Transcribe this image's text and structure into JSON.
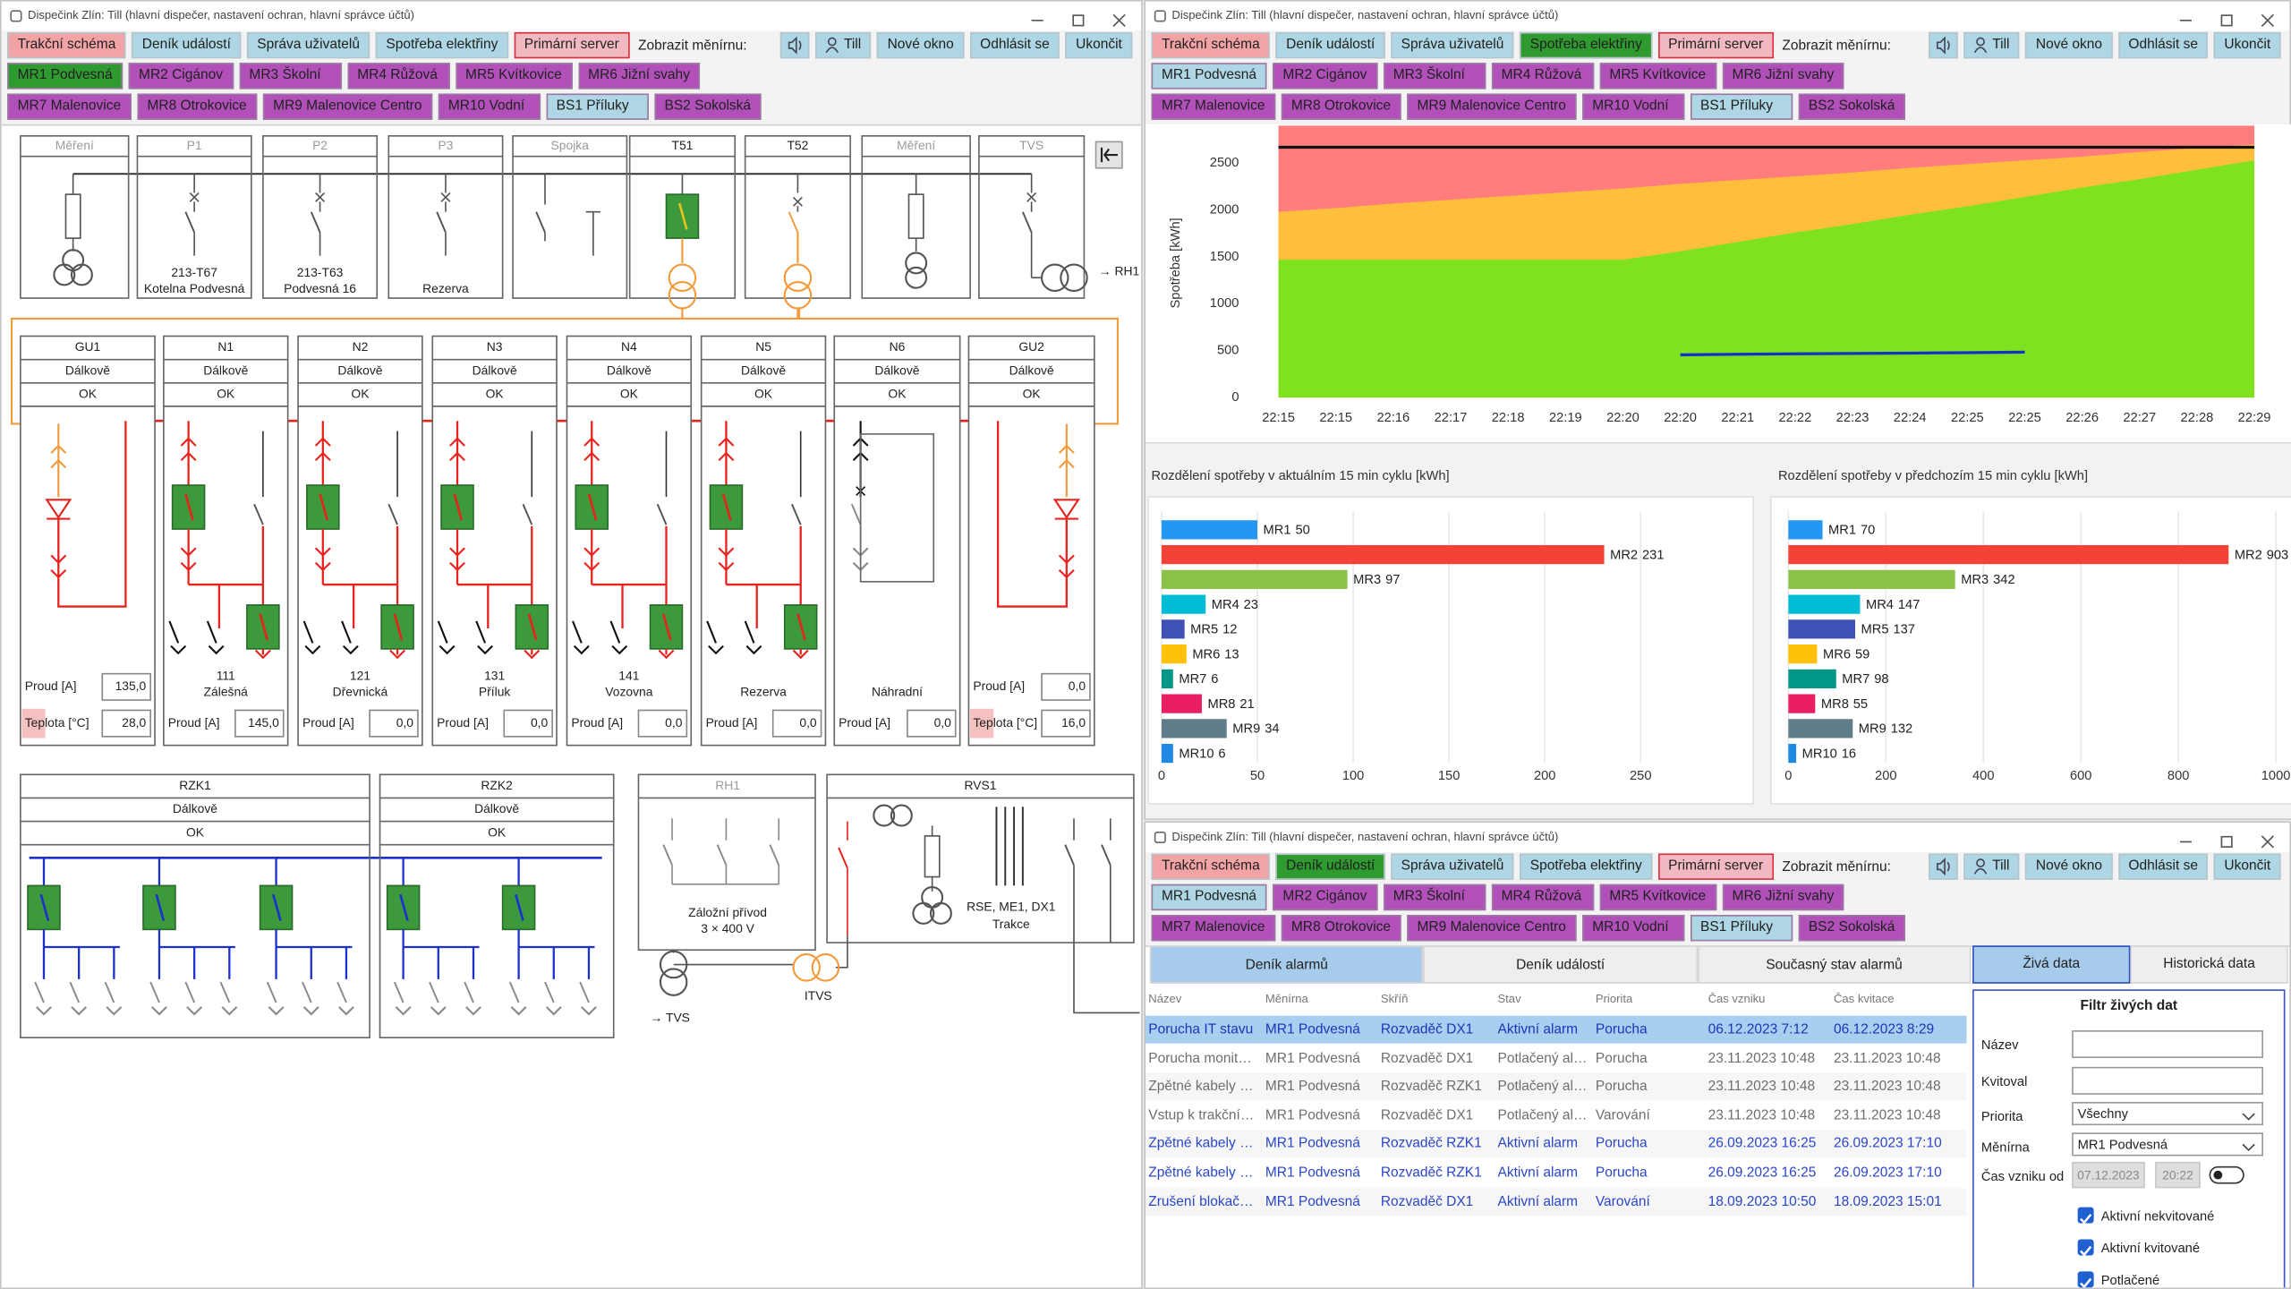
{
  "windows": [
    {
      "title": "Dispečink Zlín: Till (hlavní dispečer, nastavení ochran, hlavní správce účtů)",
      "active_tab": null,
      "selected_station": 0
    },
    {
      "title": "Dispečink Zlín: Till (hlavní dispečer, nastavení ochran, hlavní správce účtů)",
      "active_tab": 3,
      "selected_station": null
    },
    {
      "title": "Dispečink Zlín: Till (hlavní dispečer, nastavení ochran, hlavní správce účtů)",
      "active_tab": 1,
      "selected_station": null
    }
  ],
  "toolbar": {
    "tabs": [
      {
        "label": "Trakční schéma",
        "color": "#f2a3a6"
      },
      {
        "label": "Deník událostí",
        "color": "#aed6e4"
      },
      {
        "label": "Správa uživatelů",
        "color": "#aed6e4"
      },
      {
        "label": "Spotřeba elektřiny",
        "color": "#aed6e4"
      },
      {
        "label": "Primární server",
        "color": "#f3b9c3",
        "border": "#d9303f"
      }
    ],
    "active_color": "#2f9a2f",
    "selected_station_color": "#2f9a2f",
    "station_prompt": "Zobrazit měnírnu:",
    "user": "Till",
    "buttons": [
      "Nové okno",
      "Odhlásit se",
      "Ukončit"
    ],
    "station_rows": [
      [
        {
          "label": "MR1 Podvesná",
          "color": "#aed6e4"
        },
        {
          "label": "MR2 Cigánov",
          "color": "#b250ba"
        },
        {
          "label": "MR3 Školní",
          "color": "#b250ba"
        },
        {
          "label": "MR4 Růžová",
          "color": "#b250ba"
        },
        {
          "label": "MR5 Kvítkovice",
          "color": "#b250ba"
        },
        {
          "label": "MR6 Jižní svahy",
          "color": "#b250ba"
        }
      ],
      [
        {
          "label": "MR7 Malenovice",
          "color": "#b250ba"
        },
        {
          "label": "MR8 Otrokovice",
          "color": "#b250ba"
        },
        {
          "label": "MR9 Malenovice Centro",
          "color": "#b250ba"
        },
        {
          "label": "MR10 Vodní",
          "color": "#b250ba"
        },
        {
          "label": "BS1 Příluky",
          "color": "#aed6e4"
        },
        {
          "label": "BS2 Sokolská",
          "color": "#b250ba"
        }
      ]
    ]
  },
  "schematic": {
    "top_cells": [
      {
        "label": "Měření",
        "enabled": false
      },
      {
        "label": "P1",
        "enabled": false,
        "caption": [
          "213-T67",
          "Kotelna Podvesná"
        ]
      },
      {
        "label": "P2",
        "enabled": false,
        "caption": [
          "213-T63",
          "Podvesná 16"
        ]
      },
      {
        "label": "P3",
        "enabled": false,
        "caption": [
          "Rezerva"
        ]
      },
      {
        "label": "Spojka",
        "enabled": false
      },
      {
        "label": "T51",
        "enabled": true
      },
      {
        "label": "T52",
        "enabled": true
      },
      {
        "label": "Měření",
        "enabled": false
      },
      {
        "label": "TVS",
        "enabled": false
      }
    ],
    "rh1_link": "→ RH1",
    "feeders": [
      {
        "name": "GU1",
        "kind": "rectifier",
        "mode": "Dálkově",
        "status": "OK",
        "readings": [
          {
            "label": "Proud [A]",
            "value": "135,0"
          },
          {
            "label": "Teplota [°C]",
            "value": "28,0",
            "alert": true
          }
        ]
      },
      {
        "name": "N1",
        "kind": "feeder",
        "mode": "Dálkově",
        "status": "OK",
        "caption": [
          "111",
          "Zálešná"
        ],
        "readings": [
          {
            "label": "Proud [A]",
            "value": "145,0"
          }
        ]
      },
      {
        "name": "N2",
        "kind": "feeder",
        "mode": "Dálkově",
        "status": "OK",
        "caption": [
          "121",
          "Dřevnická"
        ],
        "readings": [
          {
            "label": "Proud [A]",
            "value": "0,0"
          }
        ]
      },
      {
        "name": "N3",
        "kind": "feeder",
        "mode": "Dálkově",
        "status": "OK",
        "caption": [
          "131",
          "Příluk"
        ],
        "readings": [
          {
            "label": "Proud [A]",
            "value": "0,0"
          }
        ]
      },
      {
        "name": "N4",
        "kind": "feeder",
        "mode": "Dálkově",
        "status": "OK",
        "caption": [
          "141",
          "Vozovna"
        ],
        "readings": [
          {
            "label": "Proud [A]",
            "value": "0,0"
          }
        ]
      },
      {
        "name": "N5",
        "kind": "feeder",
        "mode": "Dálkově",
        "status": "OK",
        "caption": [
          "Rezerva"
        ],
        "readings": [
          {
            "label": "Proud [A]",
            "value": "0,0"
          }
        ]
      },
      {
        "name": "N6",
        "kind": "spare",
        "mode": "Dálkově",
        "status": "OK",
        "caption": [
          "Náhradní"
        ],
        "readings": [
          {
            "label": "Proud [A]",
            "value": "0,0"
          }
        ]
      },
      {
        "name": "GU2",
        "kind": "rectifier",
        "mode": "Dálkově",
        "status": "OK",
        "readings": [
          {
            "label": "Proud [A]",
            "value": "0,0"
          },
          {
            "label": "Teplota [°C]",
            "value": "16,0",
            "alert": true
          }
        ]
      }
    ],
    "sections": [
      {
        "name": "RZK1",
        "mode": "Dálkově",
        "status": "OK"
      },
      {
        "name": "RZK2",
        "mode": "Dálkově",
        "status": "OK"
      }
    ],
    "rh1": {
      "name": "RH1",
      "caption": [
        "Záložní přívod",
        "3 × 400 V"
      ],
      "link": "→ TVS"
    },
    "rvs1": {
      "name": "RVS1",
      "caption": [
        "RSE, ME1, DX1",
        "Trakce"
      ],
      "link": "ITVS"
    }
  },
  "chart_data": [
    {
      "type": "area",
      "y_label": "Spotřeba [kWh]",
      "categories": [
        "22:15",
        "22:15",
        "22:16",
        "22:17",
        "22:18",
        "22:19",
        "22:20",
        "22:20",
        "22:21",
        "22:22",
        "22:23",
        "22:24",
        "22:25",
        "22:25",
        "22:26",
        "22:27",
        "22:28",
        "22:29"
      ],
      "ylim": [
        0,
        2900
      ],
      "yticks": [
        0,
        500,
        1000,
        1500,
        2000,
        2500
      ],
      "grid": false,
      "series": [
        {
          "color": "#ff7d7d",
          "values": [
            2900,
            2900,
            2900,
            2900,
            2900,
            2900,
            2900,
            2900,
            2900,
            2900,
            2900,
            2900,
            2900,
            2900,
            2900,
            2900,
            2900,
            2900
          ]
        },
        {
          "color": "#ffbf3c",
          "values": [
            1980,
            2020,
            2070,
            2110,
            2150,
            2190,
            2230,
            2280,
            2320,
            2360,
            2400,
            2450,
            2490,
            2530,
            2570,
            2620,
            2660,
            2700
          ]
        },
        {
          "color": "#7ee21e",
          "values": [
            1470,
            1470,
            1470,
            1470,
            1470,
            1470,
            1470,
            1560,
            1660,
            1760,
            1850,
            1950,
            2040,
            2140,
            2240,
            2330,
            2430,
            2530
          ]
        },
        {
          "color": "#111111",
          "style": "line",
          "values": [
            2670,
            2670,
            2670,
            2670,
            2670,
            2670,
            2670,
            2670,
            2670,
            2670,
            2670,
            2670,
            2670,
            2670,
            2670,
            2670,
            2670,
            2670
          ]
        },
        {
          "color": "#1034c4",
          "style": "line",
          "values": [
            null,
            null,
            null,
            null,
            null,
            null,
            null,
            455,
            462,
            466,
            470,
            474,
            478,
            484,
            null,
            null,
            null,
            null
          ]
        }
      ]
    },
    {
      "type": "hbar",
      "title": "Rozdělení spotřeby v aktuálním 15 min cyklu [kWh]",
      "categories": [
        "MR1",
        "MR2",
        "MR3",
        "MR4",
        "MR5",
        "MR6",
        "MR7",
        "MR8",
        "MR9",
        "MR10"
      ],
      "values": [
        50,
        231,
        97,
        23,
        12,
        13,
        6,
        21,
        34,
        6
      ],
      "colors": [
        "#2196f3",
        "#f44336",
        "#8bc34a",
        "#00bcd4",
        "#3f51b5",
        "#ffc107",
        "#009688",
        "#e91e63",
        "#607d8b",
        "#1e88e5"
      ],
      "xlim": [
        0,
        305
      ],
      "xticks": [
        0,
        50,
        100,
        150,
        200,
        250
      ],
      "grid": true
    },
    {
      "type": "hbar",
      "title": "Rozdělení spotřeby v předchozím 15 min cyklu [kWh]",
      "categories": [
        "MR1",
        "MR2",
        "MR3",
        "MR4",
        "MR5",
        "MR6",
        "MR7",
        "MR8",
        "MR9",
        "MR10"
      ],
      "values": [
        70,
        903,
        342,
        147,
        137,
        59,
        98,
        55,
        132,
        16
      ],
      "colors": [
        "#2196f3",
        "#f44336",
        "#8bc34a",
        "#00bcd4",
        "#3f51b5",
        "#ffc107",
        "#009688",
        "#e91e63",
        "#607d8b",
        "#1e88e5"
      ],
      "xlim": [
        0,
        1010
      ],
      "xticks": [
        0,
        200,
        400,
        600,
        800,
        1000
      ],
      "grid": true
    }
  ],
  "alarms": {
    "tabs": [
      "Deník alarmů",
      "Deník událostí",
      "Současný stav alarmů"
    ],
    "active_tab": 0,
    "side_tabs": [
      "Živá data",
      "Historická data"
    ],
    "active_side_tab": 0,
    "columns": [
      "Název",
      "Měnírna",
      "Skříň",
      "Stav",
      "Priorita",
      "Čas vzniku",
      "Čas kvitace"
    ],
    "rows": [
      [
        "Porucha IT stavu",
        "MR1 Podvesná",
        "Rozvaděč DX1",
        "Aktivní alarm",
        "Porucha",
        "06.12.2023 7:12",
        "06.12.2023 8:29"
      ],
      [
        "Porucha monit…",
        "MR1 Podvesná",
        "Rozvaděč DX1",
        "Potlačený al…",
        "Porucha",
        "23.11.2023 10:48",
        "23.11.2023 10:48"
      ],
      [
        "Zpětné kabely …",
        "MR1 Podvesná",
        "Rozvaděč RZK1",
        "Potlačený al…",
        "Porucha",
        "23.11.2023 10:48",
        "23.11.2023 10:48"
      ],
      [
        "Vstup k trakční…",
        "MR1 Podvesná",
        "Rozvaděč DX1",
        "Potlačený al…",
        "Varování",
        "23.11.2023 10:48",
        "23.11.2023 10:48"
      ],
      [
        "Zpětné kabely …",
        "MR1 Podvesná",
        "Rozvaděč RZK1",
        "Aktivní alarm",
        "Porucha",
        "26.09.2023 16:25",
        "26.09.2023 17:10"
      ],
      [
        "Zpětné kabely …",
        "MR1 Podvesná",
        "Rozvaděč RZK1",
        "Aktivní alarm",
        "Porucha",
        "26.09.2023 16:25",
        "26.09.2023 17:10"
      ],
      [
        "Zrušení blokač…",
        "MR1 Podvesná",
        "Rozvaděč DX1",
        "Aktivní alarm",
        "Varování",
        "18.09.2023 10:50",
        "18.09.2023 15:01"
      ]
    ],
    "row_colors": [
      "#1a36b8",
      "#6e6e6e",
      "#6e6e6e",
      "#6e6e6e",
      "#2a46c8",
      "#2a46c8",
      "#2a46c8"
    ],
    "selected_row": 0,
    "filter": {
      "title": "Filtr živých dat",
      "fields": [
        {
          "label": "Název"
        },
        {
          "label": "Kvitoval"
        },
        {
          "label": "Priorita",
          "value": "Všechny",
          "dropdown": true
        },
        {
          "label": "Měnírna",
          "value": "MR1 Podvesná",
          "dropdown": true
        }
      ],
      "time": {
        "label": "Čas vzniku od",
        "date": "07.12.2023",
        "time": "20:22"
      },
      "checks": [
        "Aktivní nekvitované",
        "Aktivní kvitované",
        "Potlačené"
      ]
    }
  }
}
